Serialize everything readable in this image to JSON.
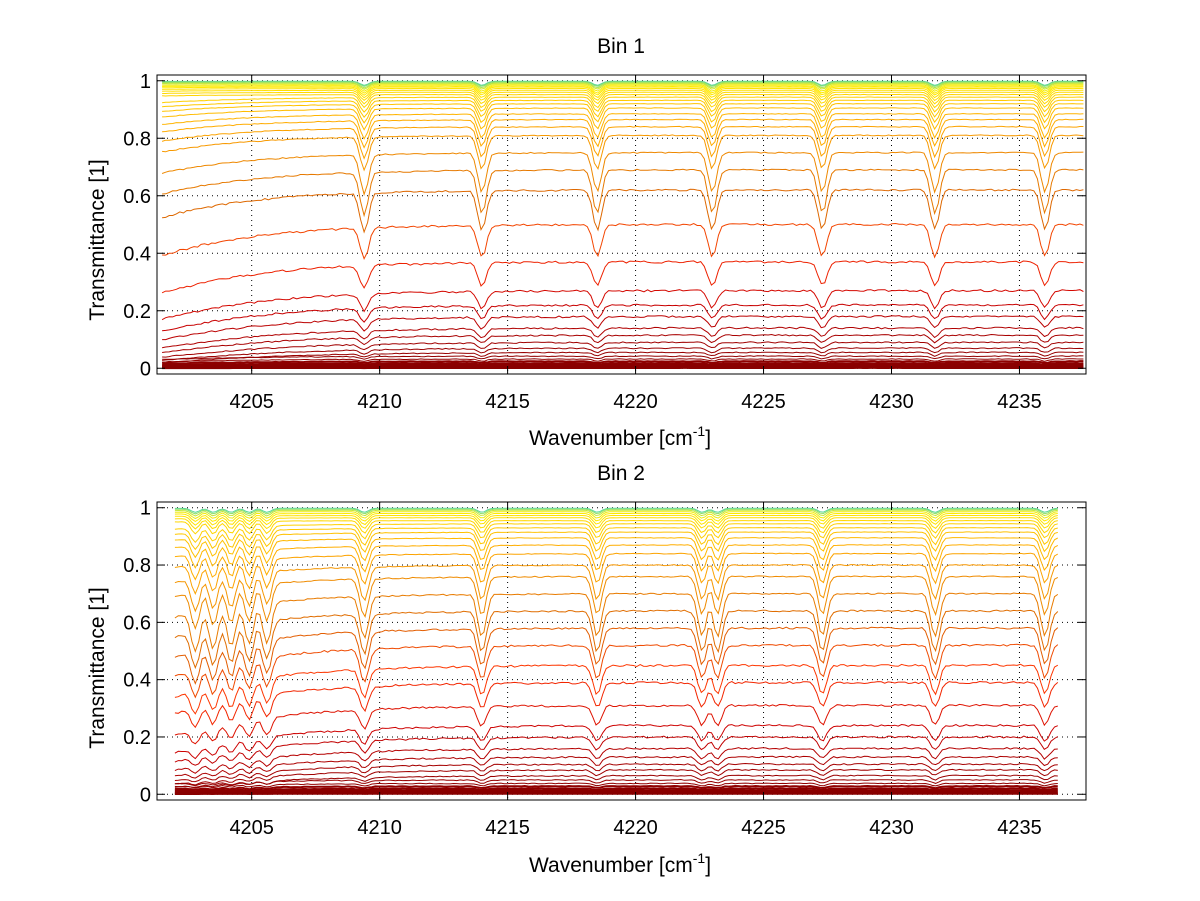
{
  "chart_data": [
    {
      "type": "line",
      "title": "Bin 1",
      "xlabel": "Wavenumber [cm",
      "xlabel_sup": "-1",
      "xlabel_end": "]",
      "ylabel": "Transmittance [1]",
      "xlim": [
        4201.3,
        4237.6
      ],
      "ylim": [
        -0.02,
        1.02
      ],
      "xticks": [
        4205,
        4210,
        4215,
        4220,
        4225,
        4230,
        4235
      ],
      "yticks": [
        0,
        0.2,
        0.4,
        0.6,
        0.8,
        1
      ],
      "ytick_labels": [
        "0",
        "0.2",
        "0.4",
        "0.6",
        "0.8",
        "1"
      ],
      "grid": true,
      "x_start": 4201.5,
      "x_end": 4237.5,
      "absorption_lines": [
        4209.4,
        4214.0,
        4218.5,
        4223.0,
        4227.3,
        4231.7,
        4236.0
      ],
      "transmittance_levels": [
        0.998,
        0.996,
        0.993,
        0.99,
        0.986,
        0.982,
        0.978,
        0.973,
        0.967,
        0.96,
        0.952,
        0.943,
        0.932,
        0.92,
        0.905,
        0.885,
        0.865,
        0.84,
        0.81,
        0.75,
        0.69,
        0.62,
        0.5,
        0.37,
        0.27,
        0.22,
        0.18,
        0.14,
        0.115,
        0.09,
        0.07,
        0.055,
        0.042,
        0.032,
        0.024,
        0.017,
        0.012,
        0.008,
        0.005,
        0.003,
        0.001
      ],
      "colors": [
        "#00ccee",
        "#ffee00",
        "#ffcc00",
        "#ffaa00",
        "#ee8800",
        "#dd6600",
        "#ff3300",
        "#cc0000",
        "#880000"
      ]
    },
    {
      "type": "line",
      "title": "Bin 2",
      "xlabel": "Wavenumber [cm",
      "xlabel_sup": "-1",
      "xlabel_end": "]",
      "ylabel": "Transmittance [1]",
      "xlim": [
        4201.3,
        4237.6
      ],
      "ylim": [
        -0.02,
        1.02
      ],
      "xticks": [
        4205,
        4210,
        4215,
        4220,
        4225,
        4230,
        4235
      ],
      "yticks": [
        0,
        0.2,
        0.4,
        0.6,
        0.8,
        1
      ],
      "ytick_labels": [
        "0",
        "0.2",
        "0.4",
        "0.6",
        "0.8",
        "1"
      ],
      "grid": true,
      "x_start": 4202.0,
      "x_end": 4236.5,
      "absorption_lines": [
        4202.8,
        4203.5,
        4204.2,
        4204.9,
        4205.6,
        4209.4,
        4214.0,
        4218.5,
        4222.6,
        4223.2,
        4227.3,
        4231.7,
        4236.0
      ],
      "transmittance_levels": [
        0.998,
        0.995,
        0.991,
        0.986,
        0.98,
        0.973,
        0.965,
        0.955,
        0.944,
        0.93,
        0.915,
        0.895,
        0.87,
        0.84,
        0.8,
        0.76,
        0.7,
        0.64,
        0.58,
        0.52,
        0.45,
        0.39,
        0.31,
        0.24,
        0.2,
        0.16,
        0.13,
        0.105,
        0.085,
        0.065,
        0.05,
        0.038,
        0.028,
        0.02,
        0.014,
        0.009,
        0.005,
        0.002
      ],
      "colors": [
        "#00ccee",
        "#ffee00",
        "#ffcc00",
        "#ffaa00",
        "#ee8800",
        "#dd6600",
        "#ff3300",
        "#cc0000",
        "#880000"
      ]
    }
  ]
}
